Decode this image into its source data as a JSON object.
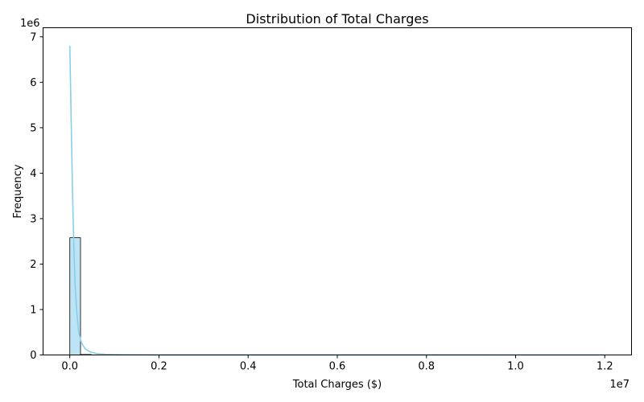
{
  "chart_data": {
    "type": "histogram",
    "title": "Distribution of Total Charges",
    "xlabel": "Total Charges ($)",
    "ylabel": "Frequency",
    "x_offset_label": "1e7",
    "y_offset_label": "1e6",
    "x_scale": 10000000,
    "y_scale": 1000000,
    "xlim": [
      -0.06,
      1.26
    ],
    "ylim": [
      0,
      7.2
    ],
    "x_ticks": [
      0.0,
      0.2,
      0.4,
      0.6,
      0.8,
      1.0,
      1.2
    ],
    "x_tick_labels": [
      "0.0",
      "0.2",
      "0.4",
      "0.6",
      "0.8",
      "1.0",
      "1.2"
    ],
    "y_ticks": [
      0,
      1,
      2,
      3,
      4,
      5,
      6,
      7
    ],
    "y_tick_labels": [
      "0",
      "1",
      "2",
      "3",
      "4",
      "5",
      "6",
      "7"
    ],
    "bar_color": "#87ceeb",
    "bar_edge_color": "#000000",
    "kde_color": "#87ceeb",
    "bins": [
      {
        "start": 0.0,
        "end": 0.024,
        "value": 2.58
      },
      {
        "start": 0.024,
        "end": 0.048,
        "value": 0.01
      },
      {
        "start": 0.048,
        "end": 0.072,
        "value": 0.002
      },
      {
        "start": 0.072,
        "end": 0.096,
        "value": 0.001
      },
      {
        "start": 0.096,
        "end": 0.12,
        "value": 0.0005
      }
    ],
    "kde": {
      "x": [
        0.0,
        0.003,
        0.006,
        0.009,
        0.012,
        0.016,
        0.02,
        0.026,
        0.034,
        0.045,
        0.06,
        0.08,
        0.12,
        0.2,
        0.4,
        0.6,
        0.8,
        1.0,
        1.2
      ],
      "y": [
        6.8,
        5.2,
        3.6,
        2.4,
        1.5,
        0.9,
        0.5,
        0.27,
        0.14,
        0.07,
        0.03,
        0.015,
        0.005,
        0.002,
        0.001,
        0.0005,
        0.0003,
        0.0002,
        0.0002
      ]
    }
  }
}
